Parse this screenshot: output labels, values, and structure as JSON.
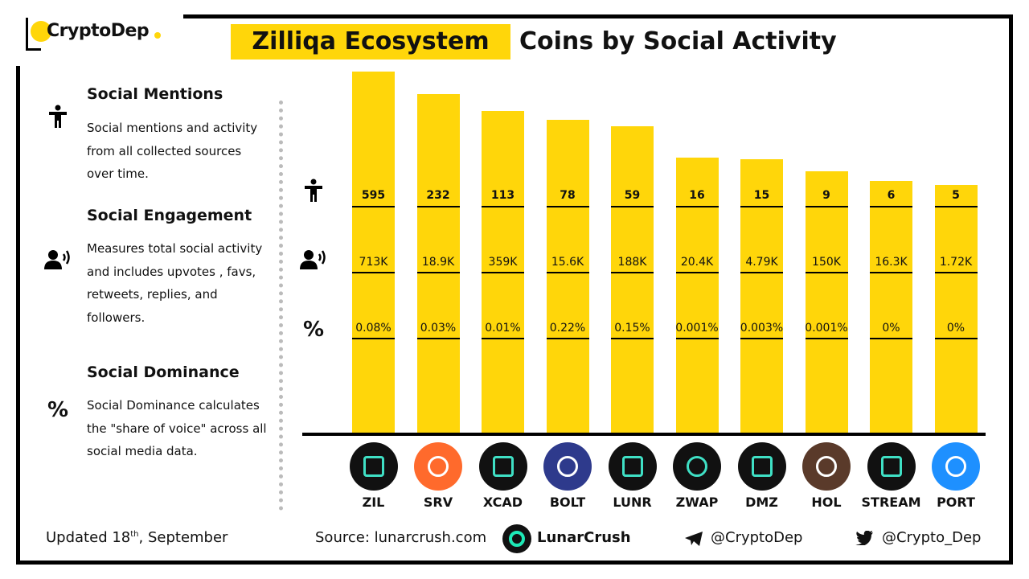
{
  "brand": {
    "logo_text": "CryptoDep"
  },
  "title": {
    "highlight": "Zilliqa Ecosystem",
    "rest": "Coins by Social Activity"
  },
  "legend": [
    {
      "title": "Social Mentions",
      "desc": "Social mentions and activity from all collected sources over time.",
      "icon": "person-icon"
    },
    {
      "title": "Social Engagement",
      "desc": "Measures total social activity and includes upvotes , favs, retweets, replies, and followers.",
      "icon": "speaking-person-icon"
    },
    {
      "title": "Social Dominance",
      "desc": "Social Dominance calculates the \"share of voice\" across all social media data.",
      "icon": "percent-icon"
    }
  ],
  "row_icons": {
    "mentions": "person-icon",
    "engagement": "speaking-person-icon",
    "dominance": "%"
  },
  "chart_data": {
    "type": "bar",
    "categories": [
      "ZIL",
      "SRV",
      "XCAD",
      "BOLT",
      "LUNR",
      "ZWAP",
      "DMZ",
      "HOL",
      "STREAM",
      "PORT"
    ],
    "values": [
      595,
      232,
      113,
      78,
      59,
      16,
      15,
      9,
      6,
      5
    ],
    "rows": {
      "mentions": [
        "595",
        "232",
        "113",
        "78",
        "59",
        "16",
        "15",
        "9",
        "6",
        "5"
      ],
      "engagement": [
        "713K",
        "18.9K",
        "359K",
        "15.6K",
        "188K",
        "20.4K",
        "4.79K",
        "150K",
        "16.3K",
        "1.72K"
      ],
      "dominance": [
        "0.08%",
        "0.03%",
        "0.01%",
        "0.22%",
        "0.15%",
        "0.001%",
        "0.003%",
        "0.001%",
        "0%",
        "0%"
      ]
    },
    "title": "Coins by Social Activity",
    "bar_color": "#FFD60A"
  },
  "coin_icon_colors": [
    "#111111",
    "#FF6A2C",
    "#111111",
    "#2E3A8C",
    "#111111",
    "#111111",
    "#111111",
    "#5a3a2a",
    "#111111",
    "#1E90FF"
  ],
  "footer": {
    "updated_prefix": "Updated  18",
    "updated_sup": "th",
    "updated_suffix": ", September",
    "source": "Source:  lunarcrush.com",
    "lunar_brand": "LunarCrush",
    "telegram": "@CryptoDep",
    "twitter": "@Crypto_Dep"
  },
  "colors": {
    "accent": "#FFD60A",
    "frame": "#000000"
  }
}
